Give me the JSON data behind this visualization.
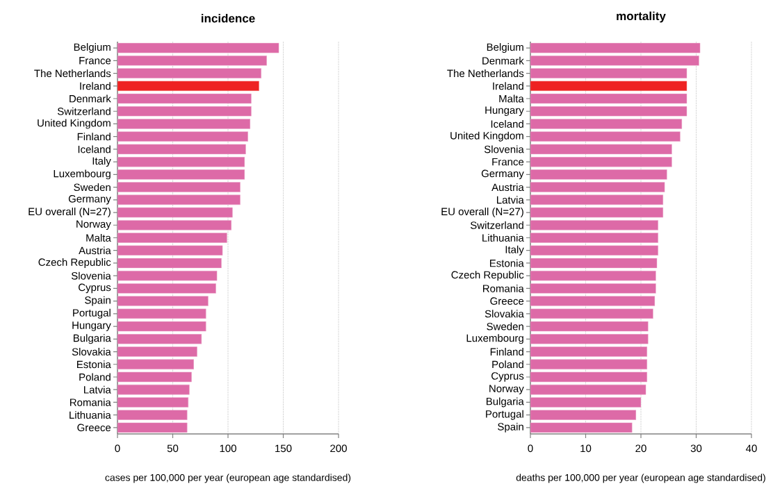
{
  "chart_data": [
    {
      "type": "bar",
      "orientation": "horizontal",
      "title": "incidence",
      "xlabel": "cases per 100,000 per year (european age standardised)",
      "categories": [
        "Belgium",
        "France",
        "The Netherlands",
        "Ireland",
        "Denmark",
        "Switzerland",
        "United Kingdom",
        "Finland",
        "Iceland",
        "Italy",
        "Luxembourg",
        "Sweden",
        "Germany",
        "EU overall (N=27)",
        "Norway",
        "Malta",
        "Austria",
        "Czech Republic",
        "Slovenia",
        "Cyprus",
        "Spain",
        "Portugal",
        "Hungary",
        "Bulgaria",
        "Slovakia",
        "Estonia",
        "Poland",
        "Latvia",
        "Romania",
        "Lithuania",
        "Greece"
      ],
      "values": [
        146,
        135,
        130,
        128,
        121,
        121,
        120,
        118,
        116,
        115,
        115,
        111,
        111,
        104,
        103,
        99,
        95,
        94,
        90,
        89,
        82,
        80,
        80,
        76,
        72,
        69,
        67,
        65,
        64,
        63,
        63
      ],
      "colors": [
        "#dd6aa7",
        "#dd6aa7",
        "#dd6aa7",
        "#ee2222",
        "#dd6aa7",
        "#dd6aa7",
        "#dd6aa7",
        "#dd6aa7",
        "#dd6aa7",
        "#dd6aa7",
        "#dd6aa7",
        "#dd6aa7",
        "#dd6aa7",
        "#dd6aa7",
        "#dd6aa7",
        "#dd6aa7",
        "#dd6aa7",
        "#dd6aa7",
        "#dd6aa7",
        "#dd6aa7",
        "#dd6aa7",
        "#dd6aa7",
        "#dd6aa7",
        "#dd6aa7",
        "#dd6aa7",
        "#dd6aa7",
        "#dd6aa7",
        "#dd6aa7",
        "#dd6aa7",
        "#dd6aa7",
        "#dd6aa7"
      ],
      "xlim": [
        0,
        200
      ],
      "xticks": [
        0,
        50,
        100,
        150,
        200
      ],
      "grid": "x"
    },
    {
      "type": "bar",
      "orientation": "horizontal",
      "title": "mortality",
      "xlabel": "deaths per 100,000 per year (european age standardised)",
      "categories": [
        "Belgium",
        "Denmark",
        "The Netherlands",
        "Ireland",
        "Malta",
        "Hungary",
        "Iceland",
        "United Kingdom",
        "Slovenia",
        "France",
        "Germany",
        "Austria",
        "Latvia",
        "EU overall (N=27)",
        "Switzerland",
        "Lithuania",
        "Italy",
        "Estonia",
        "Czech Republic",
        "Romania",
        "Greece",
        "Slovakia",
        "Sweden",
        "Luxembourg",
        "Finland",
        "Poland",
        "Cyprus",
        "Norway",
        "Bulgaria",
        "Portugal",
        "Spain"
      ],
      "values": [
        30.7,
        30.5,
        28.3,
        28.3,
        28.3,
        28.3,
        27.4,
        27.1,
        25.6,
        25.6,
        24.7,
        24.3,
        24.0,
        24.0,
        23.1,
        23.1,
        23.1,
        22.9,
        22.7,
        22.7,
        22.5,
        22.2,
        21.3,
        21.3,
        21.1,
        21.1,
        21.1,
        20.9,
        20.0,
        19.1,
        18.4
      ],
      "colors": [
        "#dd6aa7",
        "#dd6aa7",
        "#dd6aa7",
        "#ee2222",
        "#dd6aa7",
        "#dd6aa7",
        "#dd6aa7",
        "#dd6aa7",
        "#dd6aa7",
        "#dd6aa7",
        "#dd6aa7",
        "#dd6aa7",
        "#dd6aa7",
        "#dd6aa7",
        "#dd6aa7",
        "#dd6aa7",
        "#dd6aa7",
        "#dd6aa7",
        "#dd6aa7",
        "#dd6aa7",
        "#dd6aa7",
        "#dd6aa7",
        "#dd6aa7",
        "#dd6aa7",
        "#dd6aa7",
        "#dd6aa7",
        "#dd6aa7",
        "#dd6aa7",
        "#dd6aa7",
        "#dd6aa7",
        "#dd6aa7"
      ],
      "xlim": [
        0,
        40
      ],
      "xticks": [
        0,
        10,
        20,
        30,
        40
      ],
      "grid": "x"
    }
  ]
}
